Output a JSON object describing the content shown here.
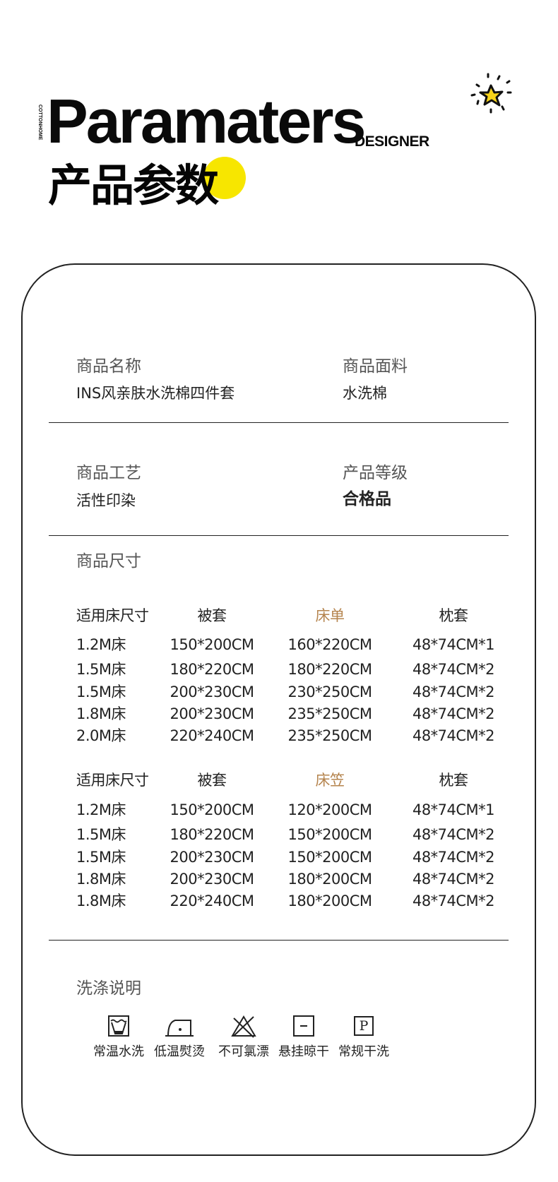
{
  "header": {
    "brand": "COTTONHOME",
    "title": "Paramaters",
    "subtitle": "DESIGNER",
    "cn_title": "产品参数",
    "accent_color": "#f7e600"
  },
  "info": [
    {
      "label": "商品名称",
      "value": "INS风亲肤水洗棉四件套"
    },
    {
      "label": "商品面料",
      "value": "水洗棉"
    },
    {
      "label": "商品工艺",
      "value": "活性印染"
    },
    {
      "label": "产品等级",
      "value": "合格品"
    }
  ],
  "size_title": "商品尺寸",
  "highlight_color": "#b5844e",
  "tables": [
    {
      "headers": [
        "适用床尺寸",
        "被套",
        "床单",
        "枕套"
      ],
      "rows": [
        [
          "1.2M床",
          "150*200CM",
          "160*220CM",
          "48*74CM*1"
        ],
        [
          "1.5M床",
          "180*220CM",
          "180*220CM",
          "48*74CM*2"
        ],
        [
          "1.5M床",
          "200*230CM",
          "230*250CM",
          "48*74CM*2"
        ],
        [
          "1.8M床",
          "200*230CM",
          "235*250CM",
          "48*74CM*2"
        ],
        [
          "2.0M床",
          "220*240CM",
          "235*250CM",
          "48*74CM*2"
        ]
      ]
    },
    {
      "headers": [
        "适用床尺寸",
        "被套",
        "床笠",
        "枕套"
      ],
      "rows": [
        [
          "1.2M床",
          "150*200CM",
          "120*200CM",
          "48*74CM*1"
        ],
        [
          "1.5M床",
          "180*220CM",
          "150*200CM",
          "48*74CM*2"
        ],
        [
          "1.5M床",
          "200*230CM",
          "150*200CM",
          "48*74CM*2"
        ],
        [
          "1.8M床",
          "200*230CM",
          "180*200CM",
          "48*74CM*2"
        ],
        [
          "1.8M床",
          "220*240CM",
          "180*200CM",
          "48*74CM*2"
        ]
      ]
    }
  ],
  "care": {
    "title": "洗涤说明",
    "items": [
      {
        "icon": "wash-tub-icon",
        "label": "常温水洗"
      },
      {
        "icon": "iron-low-icon",
        "label": "低温熨烫"
      },
      {
        "icon": "no-bleach-icon",
        "label": "不可氯漂"
      },
      {
        "icon": "hang-dry-icon",
        "label": "悬挂晾干"
      },
      {
        "icon": "dry-clean-p-icon",
        "label": "常规干洗",
        "glyph": "P"
      }
    ]
  }
}
